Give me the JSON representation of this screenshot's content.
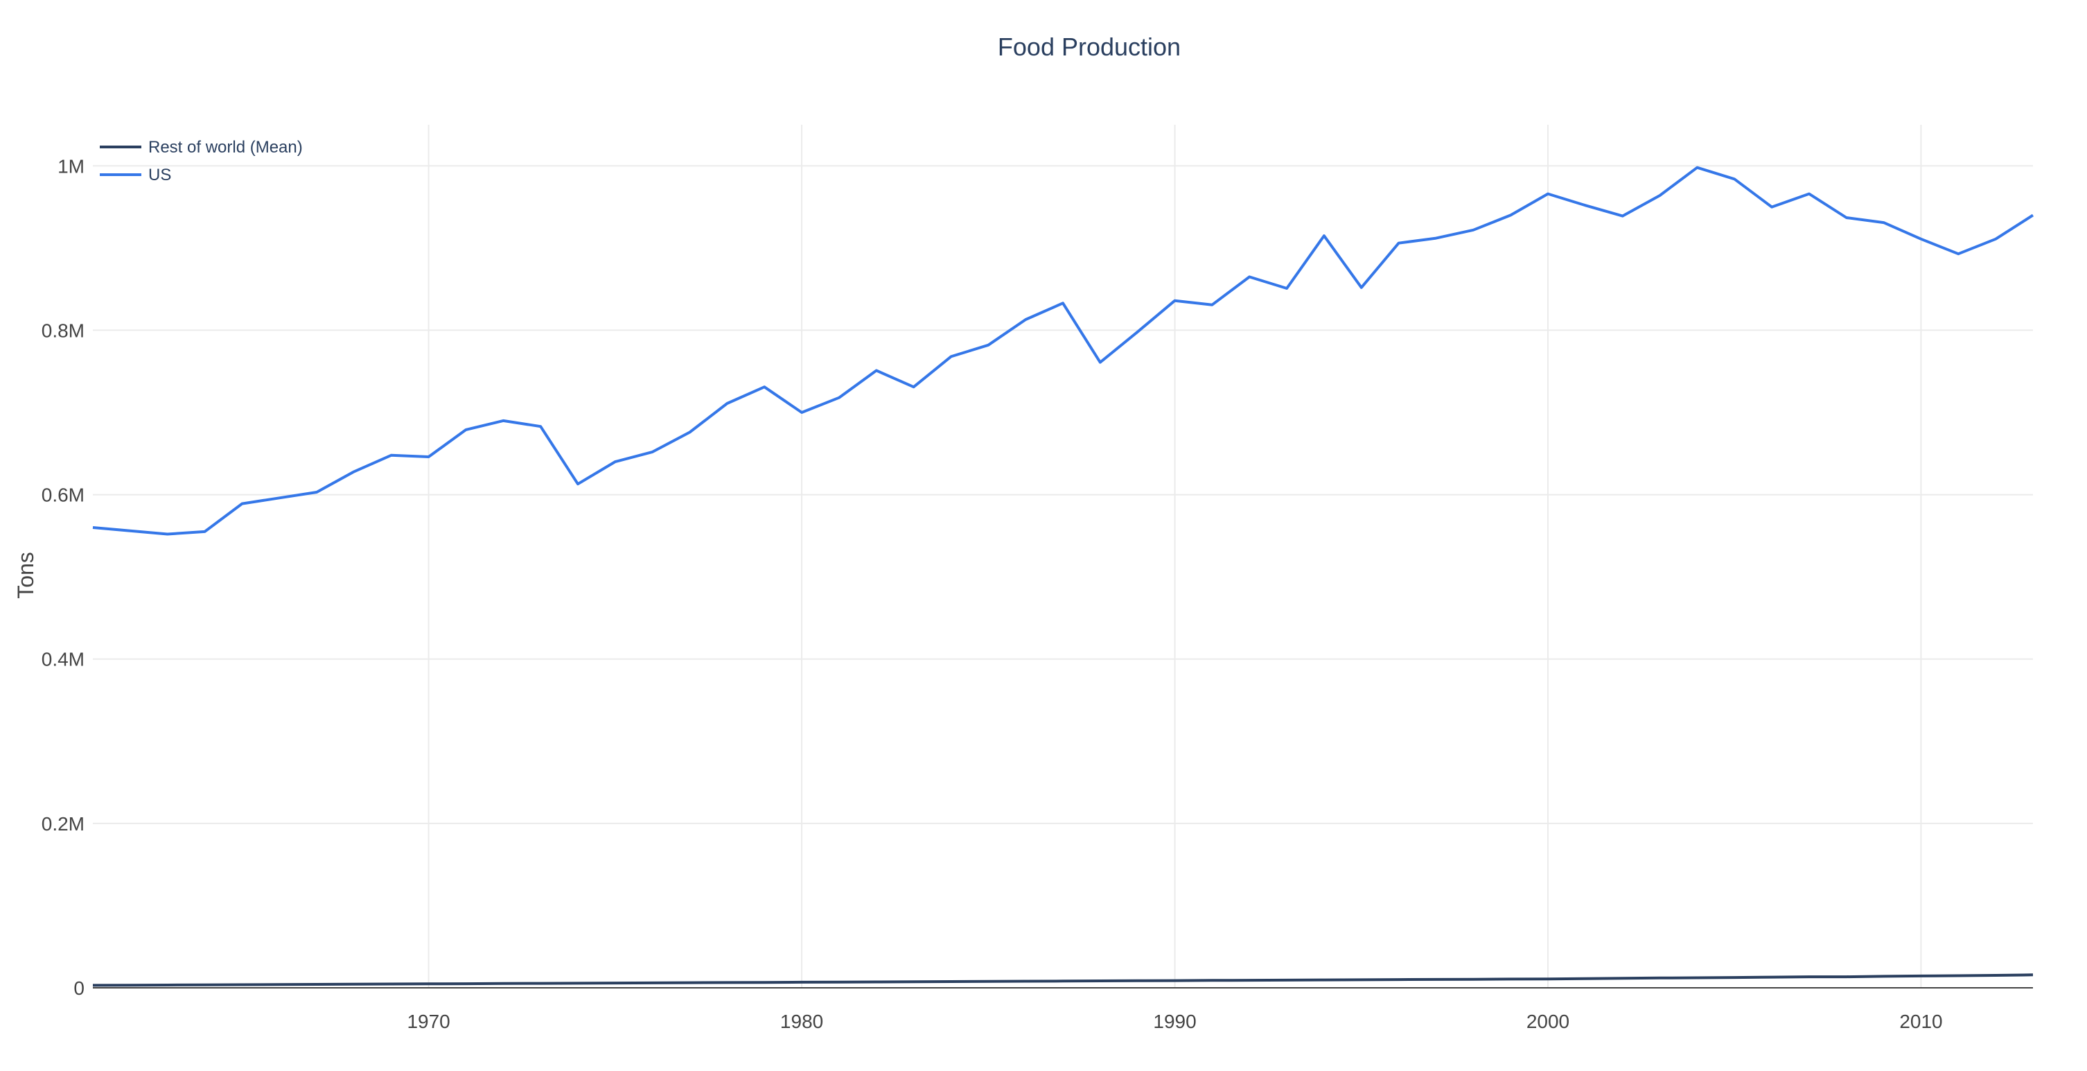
{
  "chart_data": {
    "type": "line",
    "title": "Food Production",
    "ylabel": "Tons",
    "xlabel": "",
    "xlim": [
      1961,
      2013
    ],
    "ylim": [
      0,
      1050000
    ],
    "xticks": [
      1970,
      1980,
      1990,
      2000,
      2010
    ],
    "yticks": [
      {
        "value": 0,
        "label": "0"
      },
      {
        "value": 200000,
        "label": "0.2M"
      },
      {
        "value": 400000,
        "label": "0.4M"
      },
      {
        "value": 600000,
        "label": "0.6M"
      },
      {
        "value": 800000,
        "label": "0.8M"
      },
      {
        "value": 1000000,
        "label": "1M"
      }
    ],
    "grid": true,
    "legend_position": "top-left",
    "x": [
      1961,
      1962,
      1963,
      1964,
      1965,
      1966,
      1967,
      1968,
      1969,
      1970,
      1971,
      1972,
      1973,
      1974,
      1975,
      1976,
      1977,
      1978,
      1979,
      1980,
      1981,
      1982,
      1983,
      1984,
      1985,
      1986,
      1987,
      1988,
      1989,
      1990,
      1991,
      1992,
      1993,
      1994,
      1995,
      1996,
      1997,
      1998,
      1999,
      2000,
      2001,
      2002,
      2003,
      2004,
      2005,
      2006,
      2007,
      2008,
      2009,
      2010,
      2011,
      2012,
      2013
    ],
    "series": [
      {
        "name": "Rest of world (Mean)",
        "color": "#2a3f5f",
        "values": [
          3000,
          3200,
          3400,
          3600,
          3800,
          4000,
          4200,
          4400,
          4600,
          4800,
          5000,
          5200,
          5400,
          5600,
          5800,
          6000,
          6200,
          6400,
          6600,
          6800,
          7000,
          7200,
          7400,
          7600,
          7800,
          8000,
          8200,
          8400,
          8600,
          8800,
          9000,
          9200,
          9400,
          9600,
          9800,
          10000,
          10200,
          10400,
          10600,
          10800,
          11200,
          11600,
          12000,
          12200,
          12600,
          13000,
          13400,
          13400,
          14000,
          14400,
          14800,
          15200,
          15800
        ]
      },
      {
        "name": "US",
        "color": "#3577e8",
        "values": [
          560000,
          556000,
          552000,
          555000,
          589000,
          596000,
          603000,
          628000,
          648000,
          646000,
          679000,
          690000,
          683000,
          613000,
          640000,
          652000,
          676000,
          711000,
          731000,
          700000,
          718000,
          751000,
          731000,
          768000,
          782000,
          813000,
          833000,
          761000,
          798000,
          836000,
          831000,
          865000,
          851000,
          915000,
          852000,
          906000,
          912000,
          922000,
          940000,
          966000,
          952000,
          939000,
          964000,
          998000,
          984000,
          950000,
          966000,
          937000,
          931000,
          911000,
          893000,
          911000,
          940000
        ]
      }
    ]
  }
}
